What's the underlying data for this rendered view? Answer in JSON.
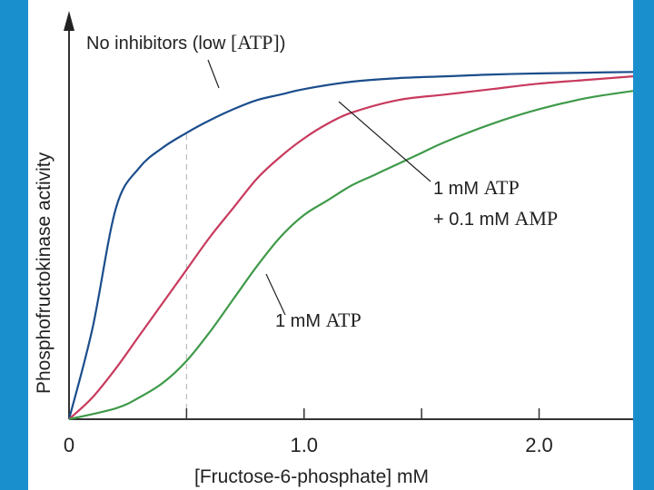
{
  "chart_data": {
    "type": "line",
    "title": "",
    "xlabel": "[Fructose-6-phosphate] mM",
    "ylabel": "Phosphofructokinase activity",
    "xlim": [
      0,
      2.4
    ],
    "ylim": [
      0,
      1.0
    ],
    "x_ticks": [
      0,
      0.5,
      1.0,
      1.5,
      2.0
    ],
    "x_tick_labels": [
      "0",
      "",
      "1.0",
      "",
      "2.0"
    ],
    "y_ticks": [],
    "grid": false,
    "reference_line_x": 0.5,
    "colors": {
      "no_inhibitors": "#1b4d8c",
      "atp_amp": "#c83a5e",
      "atp": "#3f9a4a",
      "reference": "#bbbbbb",
      "axis": "#333333",
      "frame": "#1a8fce"
    },
    "series": [
      {
        "id": "no_inhibitors",
        "name": "No inhibitors (low [ATP])",
        "label_parts": [
          "No inhibitors (low ",
          "[ATP]",
          ")"
        ],
        "x": [
          0,
          0.1,
          0.2,
          0.3,
          0.4,
          0.5,
          0.6,
          0.7,
          0.8,
          0.9,
          1.0,
          1.2,
          1.4,
          1.6,
          1.8,
          2.0,
          2.2,
          2.4
        ],
        "y": [
          0,
          0.25,
          0.58,
          0.69,
          0.745,
          0.785,
          0.82,
          0.85,
          0.875,
          0.89,
          0.905,
          0.925,
          0.935,
          0.94,
          0.945,
          0.948,
          0.95,
          0.952
        ]
      },
      {
        "id": "atp_amp",
        "name": "1 mM ATP + 0.1 mM AMP",
        "label_line1": [
          "1 mM ",
          "ATP"
        ],
        "label_line2": [
          "+ 0.1 mM ",
          "AMP"
        ],
        "x": [
          0,
          0.1,
          0.2,
          0.3,
          0.4,
          0.5,
          0.6,
          0.7,
          0.8,
          0.9,
          1.0,
          1.1,
          1.2,
          1.4,
          1.6,
          1.8,
          2.0,
          2.2,
          2.4
        ],
        "y": [
          0,
          0.06,
          0.14,
          0.23,
          0.32,
          0.41,
          0.5,
          0.58,
          0.66,
          0.72,
          0.77,
          0.81,
          0.84,
          0.875,
          0.89,
          0.905,
          0.92,
          0.93,
          0.94
        ]
      },
      {
        "id": "atp",
        "name": "1 mM ATP",
        "label_parts": [
          "1 mM ",
          "ATP"
        ],
        "x": [
          0,
          0.2,
          0.3,
          0.4,
          0.5,
          0.6,
          0.7,
          0.8,
          0.9,
          1.0,
          1.1,
          1.2,
          1.3,
          1.4,
          1.5,
          1.6,
          1.8,
          2.0,
          2.2,
          2.4
        ],
        "y": [
          0,
          0.03,
          0.06,
          0.1,
          0.16,
          0.24,
          0.33,
          0.42,
          0.5,
          0.56,
          0.6,
          0.64,
          0.67,
          0.7,
          0.73,
          0.76,
          0.81,
          0.85,
          0.88,
          0.9
        ]
      }
    ]
  }
}
